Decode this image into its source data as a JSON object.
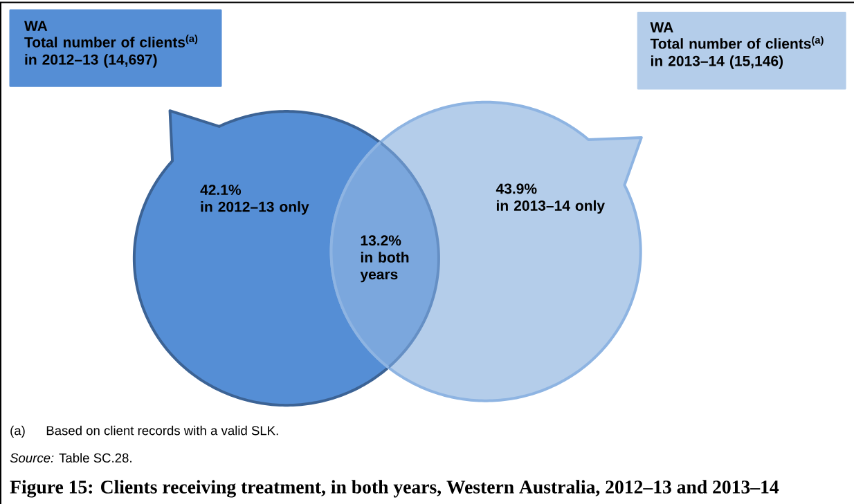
{
  "chart_data": {
    "type": "other",
    "title": "Figure 15: Clients receiving treatment, in both years, Western Australia, 2012–13 and 2013–14",
    "categories": [
      "in 2012–13 only",
      "in both years",
      "in 2013–14 only"
    ],
    "values": [
      42.1,
      13.2,
      43.9
    ],
    "value_labels": [
      "42.1%",
      "13.2%",
      "43.9%"
    ],
    "colors": [
      "#558ed5",
      "#7ba7dd",
      "#b4cdea"
    ],
    "annotations": [
      "WA",
      "Total number of clients$^{(a)}$ in 2012–13 (14,697)",
      "WA",
      "Total number of clients$^{(a)}$ in 2013–14 (15,146)",
      "(a)",
      "Based on client records with a valid SLK.",
      "*Source:* Table SC.28."
    ]
  }
}
